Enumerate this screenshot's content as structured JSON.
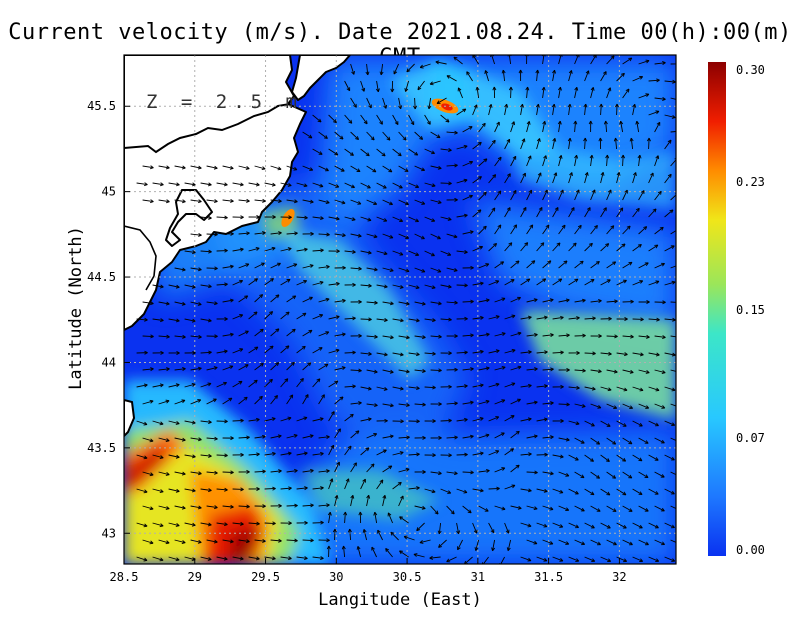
{
  "title": "Current velocity (m/s). Date 2021.08.24. Time 00(h):00(m) GMT",
  "depth_label": "Z = 2.5 m",
  "xlabel": "Langitude (East)",
  "ylabel": "Latitude (North)",
  "colors": {
    "land": "#ffffff",
    "coast": "#000000",
    "grid": "#b0b0b0",
    "scale": [
      "#0a32f0",
      "#1e78ff",
      "#28c8ff",
      "#9be65a",
      "#f0e619",
      "#ff8c00",
      "#f01e00",
      "#8c0000"
    ]
  },
  "chart_data": {
    "type": "heatmap",
    "subtype": "vector-field",
    "xlim": [
      28.5,
      32.4
    ],
    "ylim": [
      42.82,
      45.8
    ],
    "xticks": [
      "28.5",
      "29",
      "29.5",
      "30",
      "30.5",
      "31",
      "31.5",
      "32"
    ],
    "yticks": [
      "43",
      "43.5",
      "44",
      "44.5",
      "45",
      "45.5"
    ],
    "colorbar": {
      "min": 0.0,
      "max": 0.3,
      "ticks": [
        "0.30",
        "0.23",
        "0.15",
        "0.07",
        "0.00"
      ]
    },
    "features": [
      {
        "name": "strong-current-southwest",
        "lon": 29.15,
        "lat": 43.1,
        "speed": 0.28
      },
      {
        "name": "strong-current-west",
        "lon": 28.6,
        "lat": 43.35,
        "speed": 0.27
      },
      {
        "name": "jet-west",
        "lon": 29.0,
        "lat": 43.6,
        "speed": 0.16
      },
      {
        "name": "hotspot-north",
        "lon": 30.75,
        "lat": 45.52,
        "speed": 0.24
      },
      {
        "name": "band-east",
        "lon": 32.0,
        "lat": 43.95,
        "speed": 0.15
      },
      {
        "name": "band-northeast",
        "lon": 31.3,
        "lat": 45.0,
        "speed": 0.1
      },
      {
        "name": "band-north-central",
        "lon": 30.2,
        "lat": 44.6,
        "speed": 0.11
      }
    ]
  }
}
